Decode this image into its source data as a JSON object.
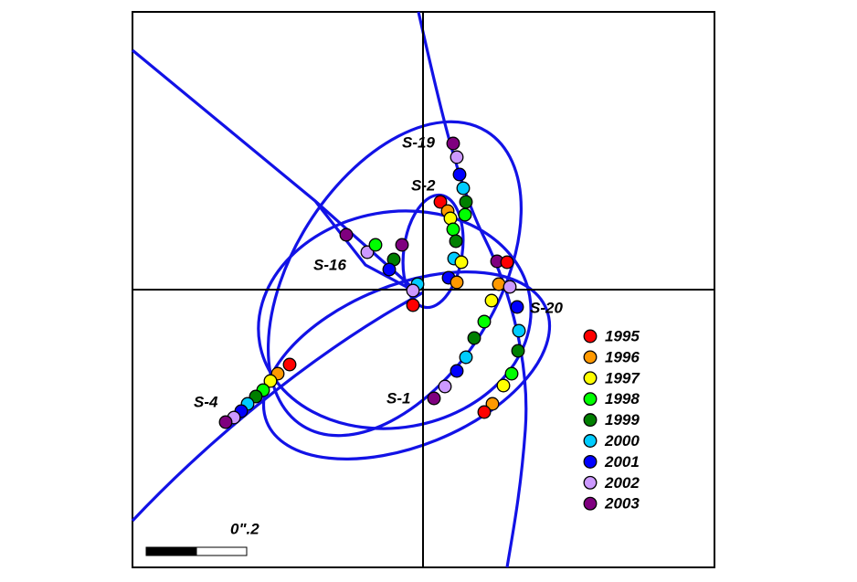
{
  "stars": [
    "S-19",
    "S-2",
    "S-16",
    "S-20",
    "S-4",
    "S-1"
  ],
  "legend": {
    "items": [
      {
        "label": "1995",
        "color": "#ff0000"
      },
      {
        "label": "1996",
        "color": "#ff9900"
      },
      {
        "label": "1997",
        "color": "#ffff00"
      },
      {
        "label": "1998",
        "color": "#00ff00"
      },
      {
        "label": "1999",
        "color": "#007f00"
      },
      {
        "label": "2000",
        "color": "#00ccff"
      },
      {
        "label": "2001",
        "color": "#0000ff"
      },
      {
        "label": "2002",
        "color": "#cc99ff"
      },
      {
        "label": "2003",
        "color": "#7f007f"
      }
    ]
  },
  "scale_bar": {
    "label": "0\".2"
  }
}
